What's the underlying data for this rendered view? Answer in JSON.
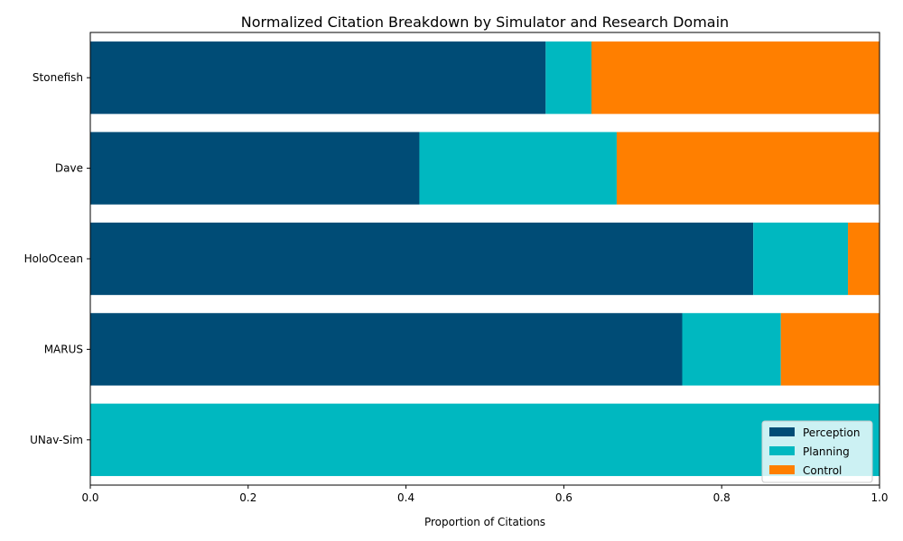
{
  "chart_data": {
    "type": "bar",
    "orientation": "horizontal",
    "stacked": true,
    "title": "Normalized Citation Breakdown by Simulator and Research Domain",
    "xlabel": "Proportion of Citations",
    "ylabel": "",
    "xlim": [
      0,
      1
    ],
    "x_ticks": [
      "0.0",
      "0.2",
      "0.4",
      "0.6",
      "0.8",
      "1.0"
    ],
    "categories": [
      "UNav-Sim",
      "MARUS",
      "HoloOcean",
      "Dave",
      "Stonefish"
    ],
    "series": [
      {
        "name": "Perception",
        "color": "#004c76",
        "values": [
          0.0,
          0.75,
          0.84,
          0.417,
          0.577
        ]
      },
      {
        "name": "Planning",
        "color": "#00b8c0",
        "values": [
          1.0,
          0.125,
          0.12,
          0.25,
          0.058
        ]
      },
      {
        "name": "Control",
        "color": "#ff7f00",
        "values": [
          0.0,
          0.125,
          0.04,
          0.333,
          0.365
        ]
      }
    ],
    "legend": {
      "position": "bottom-right"
    },
    "grid": false
  }
}
